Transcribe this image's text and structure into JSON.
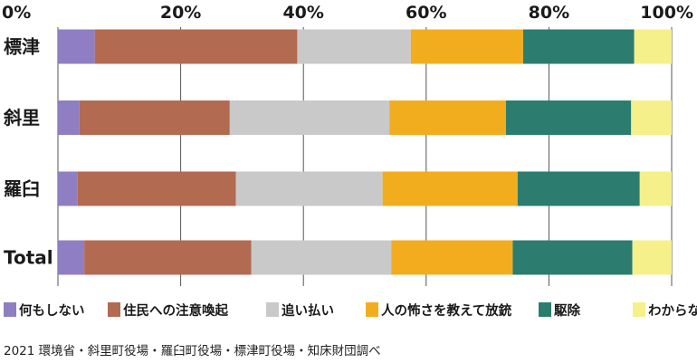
{
  "chart_data": {
    "type": "bar",
    "orientation": "horizontal",
    "stacked": true,
    "percent": true,
    "categories": [
      "標津",
      "斜里",
      "羅臼",
      "Total"
    ],
    "xlim": [
      0,
      100
    ],
    "xticks": [
      "0%",
      "20%",
      "40%",
      "60%",
      "80%",
      "100%"
    ],
    "xtick_values": [
      0,
      20,
      40,
      60,
      80,
      100
    ],
    "grid": true,
    "legend_position": "bottom",
    "series": [
      {
        "name": "何もしない",
        "color": "#8f7fc2",
        "values": [
          6,
          3.5,
          3.2,
          4.3
        ]
      },
      {
        "name": "住民への注意喚起",
        "color": "#b26a50",
        "values": [
          33,
          24.5,
          25.8,
          27.2
        ]
      },
      {
        "name": "追い払い",
        "color": "#c9c9c9",
        "values": [
          18.5,
          26,
          23.9,
          22.8
        ]
      },
      {
        "name": "人の怖さを教えて放銃",
        "color": "#f2ad1f",
        "values": [
          18.3,
          19,
          22,
          19.8
        ]
      },
      {
        "name": "駆除",
        "color": "#2c7d6f",
        "values": [
          18.1,
          20.4,
          19.9,
          19.5
        ]
      },
      {
        "name": "わからない",
        "color": "#f5f08a",
        "values": [
          6.1,
          6.6,
          5.2,
          6.4
        ]
      }
    ]
  },
  "source_note": "2021 環境省・斜里町役場・羅臼町役場・標津町役場・知床財団調べ"
}
